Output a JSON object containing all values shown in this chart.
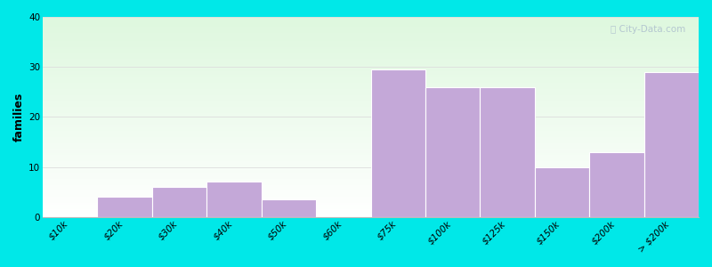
{
  "ylabel": "families",
  "categories": [
    "$10k",
    "$20k",
    "$30k",
    "$40k",
    "$50k",
    "$60k",
    "$75k",
    "$100k",
    "$125k",
    "$150k",
    "$200k",
    "> $200k"
  ],
  "values": [
    0,
    4,
    6,
    7,
    3.5,
    0,
    29.5,
    26,
    26,
    10,
    13,
    29
  ],
  "bar_color": "#c4a8d8",
  "bar_edge_color": "#ffffff",
  "background_color": "#00e8e8",
  "ylim": [
    0,
    40
  ],
  "yticks": [
    0,
    10,
    20,
    30,
    40
  ],
  "title_fontsize": 14,
  "subtitle_fontsize": 10,
  "subtitle_color": "#6699aa",
  "ylabel_fontsize": 9,
  "tick_fontsize": 7.5,
  "watermark": "ⓘ City-Data.com",
  "grid_color": "#dddddd",
  "spine_color": "#bbbbbb"
}
